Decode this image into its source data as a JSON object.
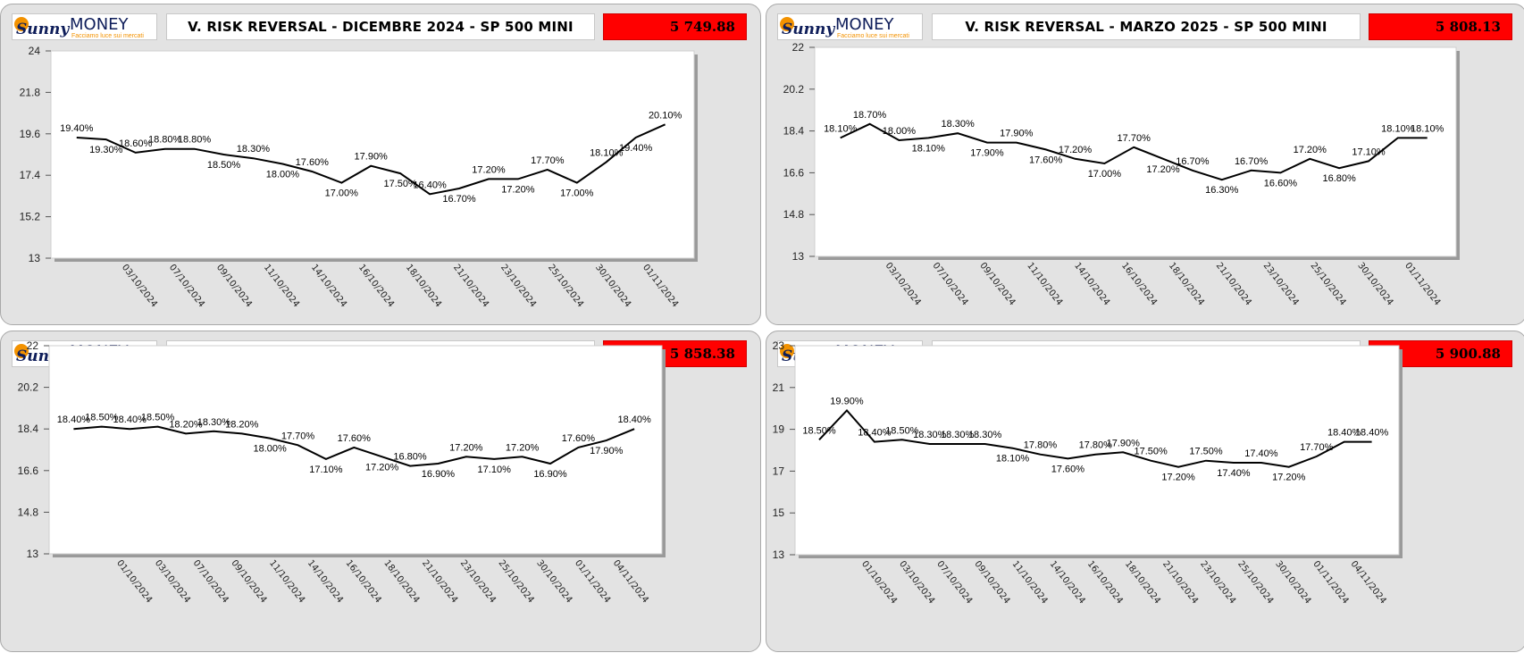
{
  "brand": {
    "name_left": "Sunny",
    "name_right": "MONEY",
    "tagline": "Facciamo luce sui mercati",
    "colors": {
      "orange": "#f39200",
      "navy": "#0f1e5a"
    }
  },
  "colors": {
    "price_bg": "#ff0000",
    "panel_bg": "#e3e3e3",
    "plot_bg": "#ffffff",
    "line": "#000000"
  },
  "panels": [
    {
      "title": "V. RISK REVERSAL - DICEMBRE 2024 - SP 500 MINI",
      "price": "5 749.88",
      "chart_data": {
        "type": "line",
        "y_ticks": [
          "24",
          "21.8",
          "19.6",
          "17.4",
          "15.2",
          "13"
        ],
        "ylim": [
          13,
          24
        ],
        "x_tick_labels": [
          "03/10/2024",
          "07/10/2024",
          "09/10/2024",
          "11/10/2024",
          "14/10/2024",
          "16/10/2024",
          "18/10/2024",
          "21/10/2024",
          "23/10/2024",
          "25/10/2024",
          "30/10/2024",
          "01/11/2024"
        ],
        "values": [
          19.4,
          19.3,
          18.6,
          18.8,
          18.8,
          18.5,
          18.3,
          18.0,
          17.6,
          17.0,
          17.9,
          17.5,
          16.4,
          16.7,
          17.2,
          17.2,
          17.7,
          17.0,
          18.1,
          19.4,
          20.1
        ],
        "labels": [
          "19.40%",
          "19.30%",
          "18.60%",
          "18.80%",
          "18.80%",
          "18.50%",
          "18.30%",
          "18.00%",
          "17.60%",
          "17.00%",
          "17.90%",
          "17.50%",
          "16.40%",
          "16.70%",
          "17.20%",
          "17.20%",
          "17.70%",
          "17.00%",
          "18.10%",
          "19.40%",
          "20.10%"
        ]
      }
    },
    {
      "title": "V. RISK REVERSAL - MARZO 2025 - SP 500 MINI",
      "price": "5 808.13",
      "chart_data": {
        "type": "line",
        "y_ticks": [
          "22",
          "20.2",
          "18.4",
          "16.6",
          "14.8",
          "13"
        ],
        "ylim": [
          13,
          22
        ],
        "x_tick_labels": [
          "03/10/2024",
          "07/10/2024",
          "09/10/2024",
          "11/10/2024",
          "14/10/2024",
          "16/10/2024",
          "18/10/2024",
          "21/10/2024",
          "23/10/2024",
          "25/10/2024",
          "30/10/2024",
          "01/11/2024"
        ],
        "values": [
          18.1,
          18.7,
          18.0,
          18.1,
          18.3,
          17.9,
          17.9,
          17.6,
          17.2,
          17.0,
          17.7,
          17.2,
          16.7,
          16.3,
          16.7,
          16.6,
          17.2,
          16.8,
          17.1,
          18.1,
          18.1
        ],
        "labels": [
          "18.10%",
          "18.70%",
          "18.00%",
          "18.10%",
          "18.30%",
          "17.90%",
          "17.90%",
          "17.60%",
          "17.20%",
          "17.00%",
          "17.70%",
          "17.20%",
          "16.70%",
          "16.30%",
          "16.70%",
          "16.60%",
          "17.20%",
          "16.80%",
          "17.10%",
          "18.10%",
          "18.10%"
        ]
      }
    },
    {
      "title": "V. RISK REVERSAL - GIUGNO 2025 - SP 500 MINI",
      "price": "5 858.38",
      "chart_data": {
        "type": "line",
        "y_ticks": [
          "22",
          "20.2",
          "18.4",
          "16.6",
          "14.8",
          "13"
        ],
        "ylim": [
          13,
          22
        ],
        "x_tick_labels": [
          "01/10/2024",
          "03/10/2024",
          "07/10/2024",
          "09/10/2024",
          "11/10/2024",
          "14/10/2024",
          "16/10/2024",
          "18/10/2024",
          "21/10/2024",
          "23/10/2024",
          "25/10/2024",
          "30/10/2024",
          "01/11/2024",
          "04/11/2024"
        ],
        "values": [
          18.4,
          18.5,
          18.4,
          18.5,
          18.2,
          18.3,
          18.2,
          18.0,
          17.7,
          17.1,
          17.6,
          17.2,
          16.8,
          16.9,
          17.2,
          17.1,
          17.2,
          16.9,
          17.6,
          17.9,
          18.4
        ],
        "labels": [
          "18.40%",
          "18.50%",
          "18.40%",
          "18.50%",
          "18.20%",
          "18.30%",
          "18.20%",
          "18.00%",
          "17.70%",
          "17.10%",
          "17.60%",
          "17.20%",
          "16.80%",
          "16.90%",
          "17.20%",
          "17.10%",
          "17.20%",
          "16.90%",
          "17.60%",
          "17.90%",
          "18.40%"
        ]
      }
    },
    {
      "title": "V. RISK REVERSAL - SETTEMBRE 2025 - SP 500 MINI",
      "price": "5 900.88",
      "chart_data": {
        "type": "line",
        "y_ticks": [
          "23",
          "21",
          "19",
          "17",
          "15",
          "13"
        ],
        "ylim": [
          13,
          23
        ],
        "x_tick_labels": [
          "01/10/2024",
          "03/10/2024",
          "07/10/2024",
          "09/10/2024",
          "11/10/2024",
          "14/10/2024",
          "16/10/2024",
          "18/10/2024",
          "21/10/2024",
          "23/10/2024",
          "25/10/2024",
          "30/10/2024",
          "01/11/2024",
          "04/11/2024"
        ],
        "values": [
          18.5,
          19.9,
          18.4,
          18.5,
          18.3,
          18.3,
          18.3,
          18.1,
          17.8,
          17.6,
          17.8,
          17.9,
          17.5,
          17.2,
          17.5,
          17.4,
          17.4,
          17.2,
          17.7,
          18.4,
          18.4
        ],
        "labels": [
          "18.50%",
          "19.90%",
          "18.40%",
          "18.50%",
          "18.30%",
          "18.30%",
          "18.30%",
          "18.10%",
          "17.80%",
          "17.60%",
          "17.80%",
          "17.90%",
          "17.50%",
          "17.20%",
          "17.50%",
          "17.40%",
          "17.40%",
          "17.20%",
          "17.70%",
          "18.40%",
          "18.40%"
        ]
      }
    }
  ]
}
